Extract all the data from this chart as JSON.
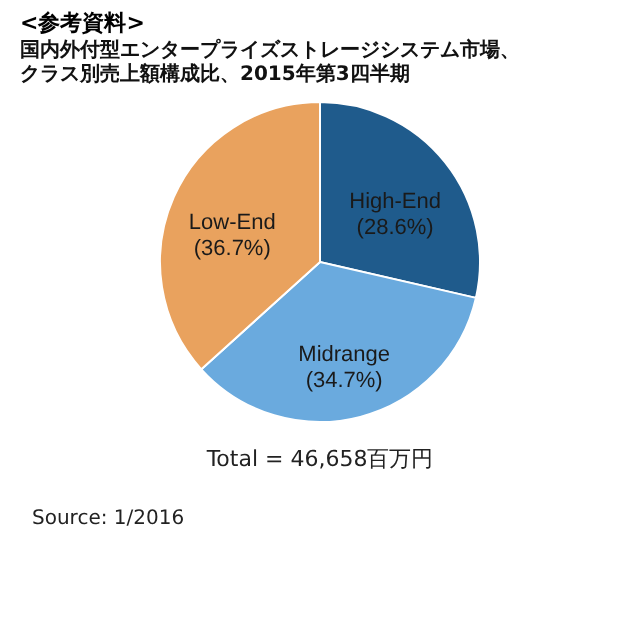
{
  "chart_data": {
    "type": "pie",
    "title": "<参考資料>",
    "subtitle": "国内外付型エンタープライズストレージシステム市場、クラス別売上額構成比、2015年第3四半期",
    "categories": [
      "High-End",
      "Midrange",
      "Low-End"
    ],
    "values": [
      28.6,
      34.7,
      36.7
    ],
    "value_labels": [
      "(28.6%)",
      "(34.7%)",
      "(36.7%)"
    ],
    "colors": [
      "#1f5b8c",
      "#6aaade",
      "#e9a25e"
    ],
    "legend": false,
    "annotations": [
      "Total = 46,658百万円",
      "Source: 1/2016"
    ]
  }
}
